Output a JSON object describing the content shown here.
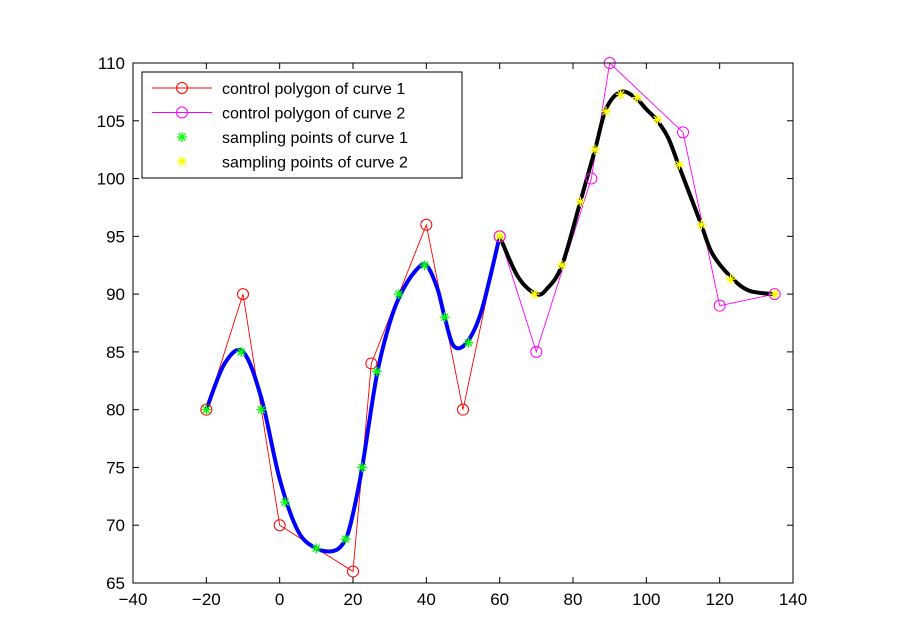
{
  "chart_data": {
    "type": "line",
    "title": "",
    "xlabel": "",
    "ylabel": "",
    "xlim": [
      -40,
      140
    ],
    "ylim": [
      65,
      110
    ],
    "xticks": [
      -40,
      -20,
      0,
      20,
      40,
      60,
      80,
      100,
      120,
      140
    ],
    "yticks": [
      65,
      70,
      75,
      80,
      85,
      90,
      95,
      100,
      105,
      110
    ],
    "x_tick_labels": [
      "−40",
      "−20",
      "0",
      "20",
      "40",
      "60",
      "80",
      "100",
      "120",
      "140"
    ],
    "y_tick_labels": [
      "65",
      "70",
      "75",
      "80",
      "85",
      "90",
      "95",
      "100",
      "105",
      "110"
    ],
    "grid": false,
    "legend_position": "top-left",
    "legend": [
      {
        "label": "control polygon of curve 1",
        "color": "#ff0000",
        "style": "line-circle"
      },
      {
        "label": "control polygon of curve 2",
        "color": "#ff00ff",
        "style": "line-circle"
      },
      {
        "label": "sampling points of curve 1",
        "color": "#00ff00",
        "style": "star"
      },
      {
        "label": "sampling points of curve 2",
        "color": "#ffff00",
        "style": "star"
      }
    ],
    "series": [
      {
        "kind": "control_polygon",
        "color": "#ff0000",
        "x": [
          -20,
          -10,
          0,
          20,
          25,
          40,
          50,
          60
        ],
        "y": [
          80,
          90,
          70,
          66,
          84,
          96,
          80,
          95
        ]
      },
      {
        "kind": "control_polygon",
        "color": "#ff00ff",
        "x": [
          60,
          70,
          85,
          90,
          110,
          120,
          135
        ],
        "y": [
          95,
          85,
          100,
          110,
          104,
          89,
          90
        ]
      },
      {
        "kind": "curve",
        "color": "#0000ff",
        "x": [
          -20,
          -15,
          -10,
          -5,
          0,
          5,
          10,
          15,
          18,
          20,
          22.5,
          26.5,
          30,
          33,
          37,
          40,
          43,
          45,
          47.5,
          51,
          55,
          60
        ],
        "y": [
          80,
          84,
          85,
          81,
          74,
          69.5,
          68,
          67.8,
          68.8,
          71,
          75,
          83,
          87.5,
          90,
          92,
          92.5,
          90.5,
          88,
          85.5,
          85.8,
          88.5,
          95
        ]
      },
      {
        "kind": "curve",
        "color": "#000000",
        "x": [
          60,
          65,
          70,
          73,
          77,
          82,
          86,
          89,
          93,
          97,
          100,
          103,
          106,
          109,
          112,
          115,
          118,
          123,
          128,
          135
        ],
        "y": [
          95,
          91.5,
          90,
          90.5,
          92.5,
          98,
          102.5,
          106,
          107.5,
          107,
          106,
          105,
          103.5,
          101,
          98.5,
          96,
          93.5,
          91.5,
          90.3,
          90
        ]
      },
      {
        "kind": "sampling_points",
        "color": "#00ff00",
        "x": [
          -20,
          -10.5,
          -5,
          1.5,
          10,
          18,
          22.5,
          26.5,
          32.5,
          39.5,
          45,
          51.5,
          60
        ],
        "y": [
          80,
          85,
          80,
          72,
          68,
          68.8,
          75,
          83.3,
          90,
          92.5,
          88,
          85.8,
          95
        ]
      },
      {
        "kind": "sampling_points",
        "color": "#ffff00",
        "x": [
          60,
          69.5,
          77,
          82,
          86,
          89,
          93,
          97.5,
          103,
          109,
          115,
          123,
          135
        ],
        "y": [
          95,
          90,
          92.5,
          98,
          102.5,
          105.8,
          107.3,
          107,
          105.1,
          101.2,
          96,
          91.3,
          90
        ]
      }
    ]
  }
}
